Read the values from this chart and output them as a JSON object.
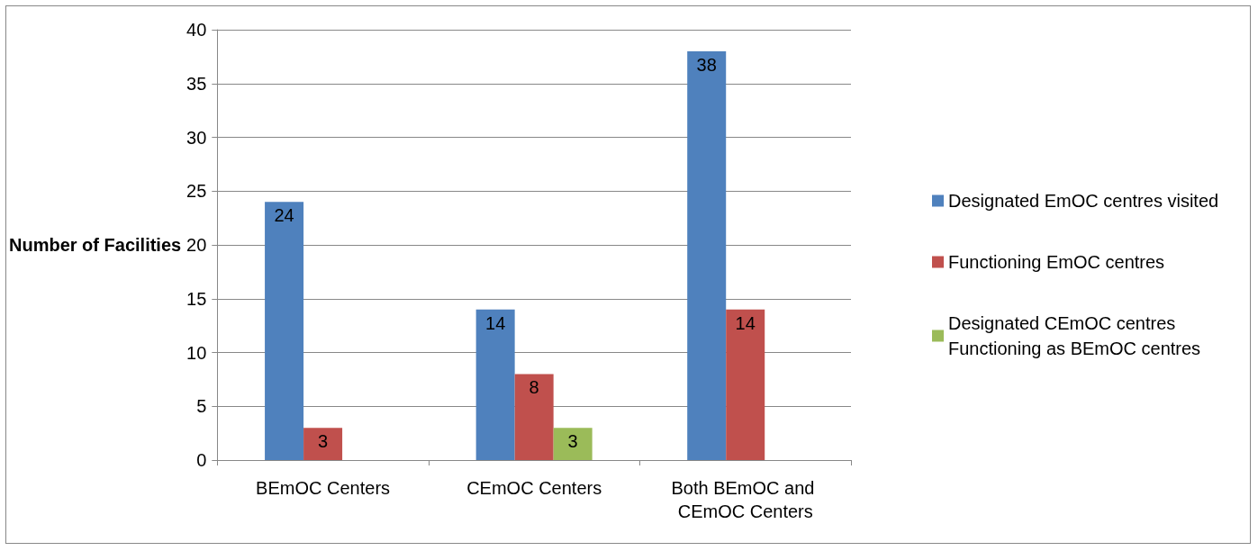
{
  "chart_data": {
    "type": "bar",
    "ylabel": "Number of Facilities",
    "categories": [
      "BEmOC Centers",
      "CEmOC Centers",
      "Both BEmOC and CEmOC Centers"
    ],
    "series": [
      {
        "name": "Designated EmOC centres visited",
        "color": "#4f81bd",
        "values": [
          24,
          14,
          38
        ]
      },
      {
        "name": "Functioning EmOC centres",
        "color": "#c0504d",
        "values": [
          3,
          8,
          14
        ]
      },
      {
        "name": "Designated CEmOC centres Functioning as BEmOC centres",
        "color": "#9bbb59",
        "values": [
          null,
          3,
          null
        ]
      }
    ],
    "ylim": [
      0,
      40
    ],
    "yticks": [
      0,
      5,
      10,
      15,
      20,
      25,
      30,
      35,
      40
    ],
    "grid": "y",
    "legend": "right",
    "data_labels": true
  }
}
